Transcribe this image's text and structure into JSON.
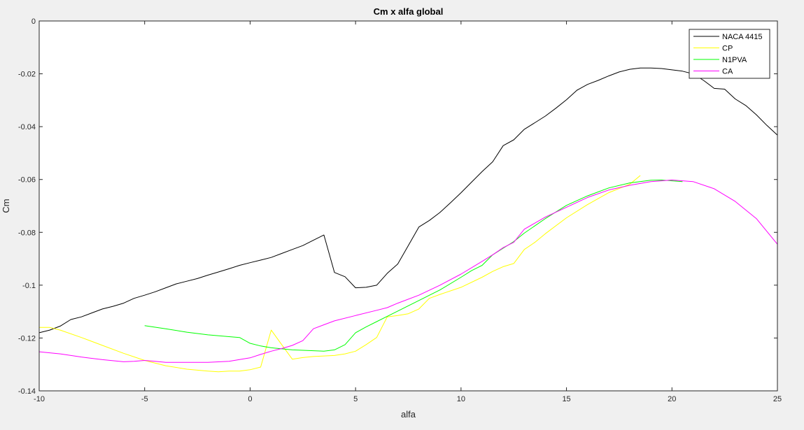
{
  "chart_data": {
    "type": "line",
    "title": "Cm x alfa global",
    "xlabel": "alfa",
    "ylabel": "Cm",
    "xlim": [
      -10,
      25
    ],
    "ylim": [
      -0.14,
      0
    ],
    "xticks": [
      -10,
      -5,
      0,
      5,
      10,
      15,
      20,
      25
    ],
    "yticks": [
      0,
      -0.02,
      -0.04,
      -0.06,
      -0.08,
      -0.1,
      -0.12,
      -0.14
    ],
    "xtick_labels": [
      "-10",
      "-5",
      "0",
      "5",
      "10",
      "15",
      "20",
      "25"
    ],
    "ytick_labels": [
      "0",
      "-0.02",
      "-0.04",
      "-0.06",
      "-0.08",
      "-0.1",
      "-0.12",
      "-0.14"
    ],
    "grid": false,
    "legend_position": "top-right",
    "series": [
      {
        "name": "NACA 4415",
        "color": "#000000",
        "points": [
          [
            -10,
            -0.118
          ],
          [
            -9.5,
            -0.117
          ],
          [
            -9,
            -0.1155
          ],
          [
            -8.5,
            -0.113
          ],
          [
            -8,
            -0.112
          ],
          [
            -7.5,
            -0.1105
          ],
          [
            -7,
            -0.109
          ],
          [
            -6.5,
            -0.108
          ],
          [
            -6,
            -0.1068
          ],
          [
            -5.5,
            -0.105
          ],
          [
            -5,
            -0.1038
          ],
          [
            -4.5,
            -0.1025
          ],
          [
            -4,
            -0.101
          ],
          [
            -3.5,
            -0.0995
          ],
          [
            -3,
            -0.0985
          ],
          [
            -2.5,
            -0.0975
          ],
          [
            -2,
            -0.0962
          ],
          [
            -1.5,
            -0.095
          ],
          [
            -1,
            -0.0938
          ],
          [
            -0.5,
            -0.0925
          ],
          [
            0,
            -0.0915
          ],
          [
            0.5,
            -0.0905
          ],
          [
            1,
            -0.0895
          ],
          [
            1.5,
            -0.088
          ],
          [
            2,
            -0.0865
          ],
          [
            2.5,
            -0.085
          ],
          [
            3,
            -0.083
          ],
          [
            3.5,
            -0.081
          ],
          [
            4,
            -0.0952
          ],
          [
            4.5,
            -0.0968
          ],
          [
            5,
            -0.101
          ],
          [
            5.5,
            -0.1008
          ],
          [
            6,
            -0.1
          ],
          [
            6.5,
            -0.0955
          ],
          [
            7,
            -0.092
          ],
          [
            7.5,
            -0.085
          ],
          [
            8,
            -0.078
          ],
          [
            8.5,
            -0.0755
          ],
          [
            9,
            -0.0725
          ],
          [
            9.5,
            -0.0688
          ],
          [
            10,
            -0.065
          ],
          [
            10.5,
            -0.061
          ],
          [
            11,
            -0.057
          ],
          [
            11.5,
            -0.0533
          ],
          [
            12,
            -0.0472
          ],
          [
            12.5,
            -0.045
          ],
          [
            13,
            -0.041
          ],
          [
            13.5,
            -0.0385
          ],
          [
            14,
            -0.036
          ],
          [
            14.5,
            -0.033
          ],
          [
            15,
            -0.0298
          ],
          [
            15.5,
            -0.0262
          ],
          [
            16,
            -0.024
          ],
          [
            16.5,
            -0.0225
          ],
          [
            17,
            -0.0208
          ],
          [
            17.5,
            -0.0193
          ],
          [
            18,
            -0.0183
          ],
          [
            18.5,
            -0.0178
          ],
          [
            19,
            -0.0178
          ],
          [
            19.5,
            -0.018
          ],
          [
            20,
            -0.0185
          ],
          [
            20.5,
            -0.019
          ],
          [
            21,
            -0.02
          ],
          [
            21.5,
            -0.0225
          ],
          [
            22,
            -0.0255
          ],
          [
            22.5,
            -0.0258
          ],
          [
            23,
            -0.0295
          ],
          [
            23.5,
            -0.032
          ],
          [
            24,
            -0.0355
          ],
          [
            24.5,
            -0.0395
          ],
          [
            25,
            -0.0432
          ]
        ]
      },
      {
        "name": "CP",
        "color": "#ffff00",
        "points": [
          [
            -10,
            -0.116
          ],
          [
            -9.5,
            -0.116
          ],
          [
            -9,
            -0.117
          ],
          [
            -8,
            -0.1198
          ],
          [
            -7,
            -0.1228
          ],
          [
            -6,
            -0.1258
          ],
          [
            -5,
            -0.1285
          ],
          [
            -4,
            -0.1305
          ],
          [
            -3,
            -0.1318
          ],
          [
            -2,
            -0.1325
          ],
          [
            -1.5,
            -0.1328
          ],
          [
            -1,
            -0.1325
          ],
          [
            -0.5,
            -0.1325
          ],
          [
            0,
            -0.132
          ],
          [
            0.5,
            -0.131
          ],
          [
            1,
            -0.117
          ],
          [
            1.5,
            -0.1225
          ],
          [
            2,
            -0.128
          ],
          [
            2.5,
            -0.1274
          ],
          [
            3,
            -0.127
          ],
          [
            4,
            -0.1266
          ],
          [
            4.5,
            -0.126
          ],
          [
            5,
            -0.125
          ],
          [
            5.5,
            -0.1225
          ],
          [
            6,
            -0.1198
          ],
          [
            6.5,
            -0.112
          ],
          [
            7,
            -0.1115
          ],
          [
            7.5,
            -0.1108
          ],
          [
            8,
            -0.109
          ],
          [
            8.5,
            -0.105
          ],
          [
            9,
            -0.1035
          ],
          [
            10,
            -0.1008
          ],
          [
            11,
            -0.097
          ],
          [
            11.5,
            -0.0948
          ],
          [
            12,
            -0.093
          ],
          [
            12.5,
            -0.0918
          ],
          [
            13,
            -0.0865
          ],
          [
            13.5,
            -0.0838
          ],
          [
            14,
            -0.0805
          ],
          [
            15,
            -0.0745
          ],
          [
            16,
            -0.0695
          ],
          [
            17,
            -0.065
          ],
          [
            18,
            -0.0618
          ],
          [
            18.5,
            -0.0585
          ]
        ]
      },
      {
        "name": "N1PVA",
        "color": "#00ff00",
        "points": [
          [
            -5,
            -0.1153
          ],
          [
            -4,
            -0.1165
          ],
          [
            -3,
            -0.1178
          ],
          [
            -2,
            -0.1188
          ],
          [
            -1,
            -0.1195
          ],
          [
            -0.5,
            -0.1198
          ],
          [
            0,
            -0.122
          ],
          [
            0.5,
            -0.123
          ],
          [
            1,
            -0.1237
          ],
          [
            2,
            -0.1245
          ],
          [
            3,
            -0.1248
          ],
          [
            3.5,
            -0.125
          ],
          [
            4,
            -0.1245
          ],
          [
            4.5,
            -0.1225
          ],
          [
            5,
            -0.118
          ],
          [
            5.5,
            -0.1158
          ],
          [
            6,
            -0.1138
          ],
          [
            6.5,
            -0.1118
          ],
          [
            7,
            -0.1098
          ],
          [
            8,
            -0.1058
          ],
          [
            9,
            -0.1018
          ],
          [
            10,
            -0.097
          ],
          [
            10.5,
            -0.0945
          ],
          [
            11,
            -0.0925
          ],
          [
            11.5,
            -0.0885
          ],
          [
            12,
            -0.086
          ],
          [
            12.5,
            -0.0835
          ],
          [
            13,
            -0.0803
          ],
          [
            14,
            -0.0748
          ],
          [
            15,
            -0.0698
          ],
          [
            16,
            -0.0662
          ],
          [
            17,
            -0.0632
          ],
          [
            18,
            -0.0613
          ],
          [
            19,
            -0.0603
          ],
          [
            19.5,
            -0.0602
          ],
          [
            20,
            -0.0605
          ],
          [
            20.5,
            -0.0608
          ]
        ]
      },
      {
        "name": "CA",
        "color": "#ff00ff",
        "points": [
          [
            -10,
            -0.1252
          ],
          [
            -9,
            -0.126
          ],
          [
            -8,
            -0.1272
          ],
          [
            -7,
            -0.1282
          ],
          [
            -6,
            -0.129
          ],
          [
            -5.5,
            -0.1288
          ],
          [
            -5,
            -0.1285
          ],
          [
            -4.5,
            -0.1288
          ],
          [
            -4,
            -0.1292
          ],
          [
            -3,
            -0.1292
          ],
          [
            -2,
            -0.1292
          ],
          [
            -1,
            -0.1288
          ],
          [
            0,
            -0.1275
          ],
          [
            0.5,
            -0.1262
          ],
          [
            1,
            -0.125
          ],
          [
            1.5,
            -0.124
          ],
          [
            2,
            -0.1228
          ],
          [
            2.5,
            -0.121
          ],
          [
            3,
            -0.1165
          ],
          [
            3.5,
            -0.115
          ],
          [
            4,
            -0.1135
          ],
          [
            5,
            -0.1115
          ],
          [
            6,
            -0.1095
          ],
          [
            6.5,
            -0.1085
          ],
          [
            7,
            -0.1068
          ],
          [
            8,
            -0.1038
          ],
          [
            9,
            -0.1
          ],
          [
            10,
            -0.0958
          ],
          [
            11,
            -0.091
          ],
          [
            11.5,
            -0.0885
          ],
          [
            12,
            -0.0858
          ],
          [
            12.5,
            -0.0838
          ],
          [
            13,
            -0.0788
          ],
          [
            14,
            -0.0742
          ],
          [
            15,
            -0.0705
          ],
          [
            16,
            -0.0668
          ],
          [
            17,
            -0.064
          ],
          [
            18,
            -0.0622
          ],
          [
            19,
            -0.0608
          ],
          [
            20,
            -0.0602
          ],
          [
            21,
            -0.0608
          ],
          [
            22,
            -0.0635
          ],
          [
            23,
            -0.0683
          ],
          [
            24,
            -0.0748
          ],
          [
            25,
            -0.0845
          ]
        ]
      }
    ]
  }
}
